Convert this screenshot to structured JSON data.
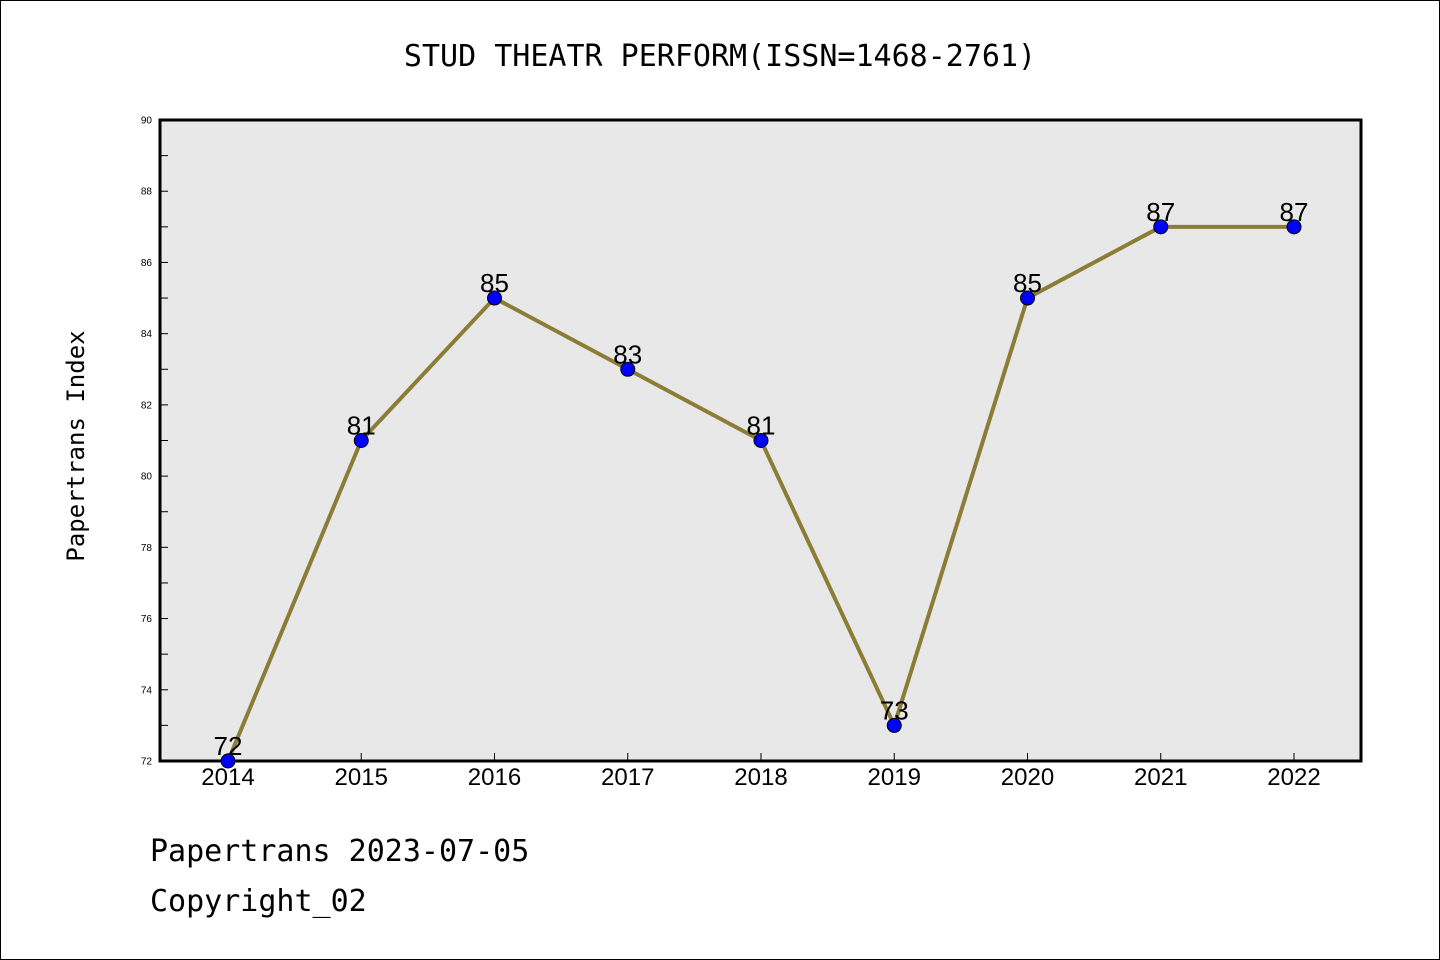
{
  "chart_data": {
    "type": "line",
    "title": "STUD THEATR PERFORM(ISSN=1468-2761)",
    "ylabel": "Papertrans Index",
    "xlabel": "",
    "categories": [
      "2014",
      "2015",
      "2016",
      "2017",
      "2018",
      "2019",
      "2020",
      "2021",
      "2022"
    ],
    "series": [
      {
        "values": [
          72,
          81,
          85,
          83,
          81,
          73,
          85,
          87,
          87
        ]
      }
    ],
    "ylim": [
      72,
      90
    ],
    "yticks": [
      72,
      74,
      76,
      78,
      80,
      82,
      84,
      86,
      88,
      90
    ],
    "grid": false,
    "plot_background": "#e8e8e8",
    "line_color": "#8c7d36",
    "marker_color": "#0000ff",
    "data_labels": true
  },
  "footer": {
    "line1": "Papertrans 2023-07-05",
    "line2": "Copyright_02"
  }
}
